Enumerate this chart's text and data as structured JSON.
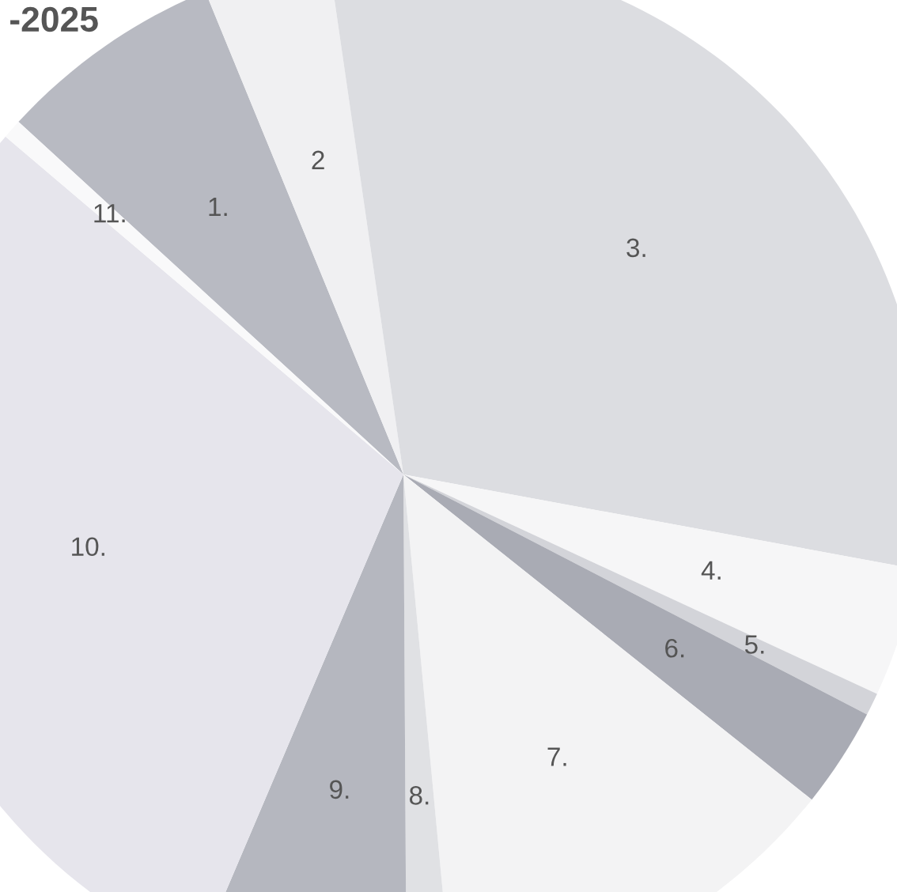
{
  "chart_data": {
    "type": "pie",
    "title": "-2025",
    "categories": [
      "1.",
      "2",
      "3.",
      "4.",
      "5.",
      "6.",
      "7.",
      "8.",
      "9.",
      "10.",
      "11."
    ],
    "values": [
      7.0,
      3.9,
      30.2,
      4.0,
      0.7,
      3.1,
      12.8,
      1.4,
      6.5,
      29.8,
      0.6
    ],
    "colors": [
      "#b8bac2",
      "#f0f0f2",
      "#dcdde1",
      "#f6f6f7",
      "#d3d4d9",
      "#a9abb4",
      "#f3f3f4",
      "#e0e1e4",
      "#b5b7bf",
      "#e6e5ec",
      "#f9f9fa"
    ],
    "legend": false
  }
}
